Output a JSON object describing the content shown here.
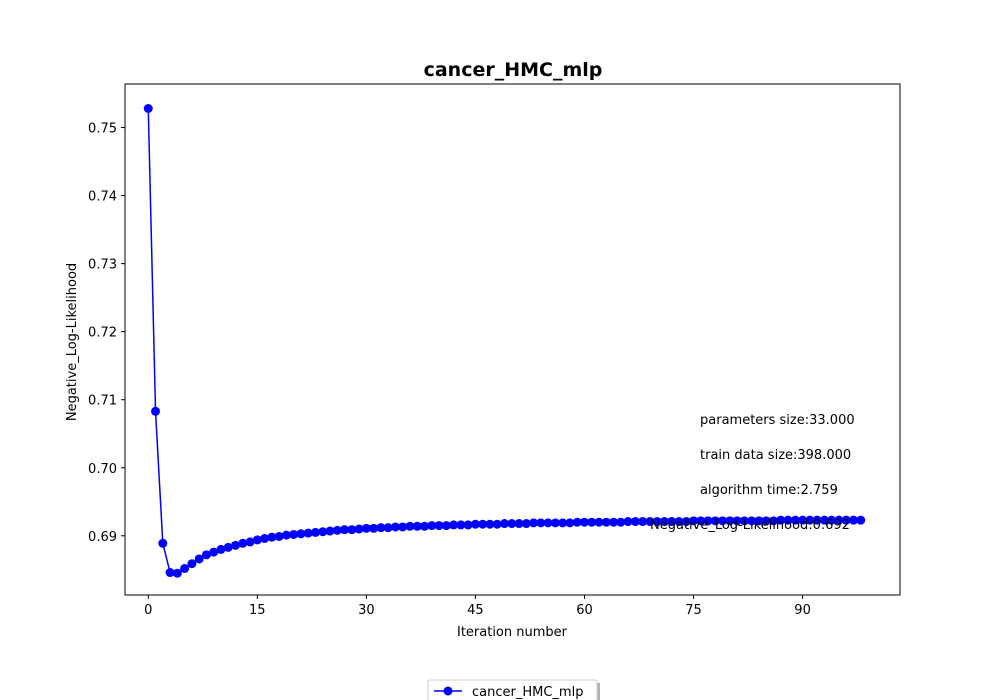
{
  "chart_data": {
    "type": "line",
    "title": "cancer_HMC_mlp",
    "xlabel": "Iteration number",
    "ylabel": "Negative_Log-Likelihood",
    "xlim": [
      -3.2,
      103.4
    ],
    "ylim": [
      0.6813,
      0.7564
    ],
    "xticks": [
      0,
      15,
      30,
      45,
      60,
      75,
      90
    ],
    "yticks": [
      0.69,
      0.7,
      0.71,
      0.72,
      0.73,
      0.74,
      0.75
    ],
    "ytick_labels": [
      "0.69",
      "0.70",
      "0.71",
      "0.72",
      "0.73",
      "0.74",
      "0.75"
    ],
    "grid": false,
    "legend_position": "bottom-center",
    "series": [
      {
        "name": "cancer_HMC_mlp",
        "color": "#0000ff",
        "marker": "circle",
        "x": [
          0,
          1,
          2,
          3,
          4,
          5,
          6,
          7,
          8,
          9,
          10,
          11,
          12,
          13,
          14,
          15,
          16,
          17,
          18,
          19,
          20,
          21,
          22,
          23,
          24,
          25,
          26,
          27,
          28,
          29,
          30,
          31,
          32,
          33,
          34,
          35,
          36,
          37,
          38,
          39,
          40,
          41,
          42,
          43,
          44,
          45,
          46,
          47,
          48,
          49,
          50,
          51,
          52,
          53,
          54,
          55,
          56,
          57,
          58,
          59,
          60,
          61,
          62,
          63,
          64,
          65,
          66,
          67,
          68,
          69,
          70,
          71,
          72,
          73,
          74,
          75,
          76,
          77,
          78,
          79,
          80,
          81,
          82,
          83,
          84,
          85,
          86,
          87,
          88,
          89,
          90,
          91,
          92,
          93,
          94,
          95,
          96,
          97,
          98
        ],
        "y": [
          0.7528,
          0.7083,
          0.6889,
          0.6846,
          0.6845,
          0.6852,
          0.6859,
          0.6866,
          0.6872,
          0.6876,
          0.688,
          0.6883,
          0.6886,
          0.6889,
          0.6891,
          0.6894,
          0.6896,
          0.6898,
          0.6899,
          0.6901,
          0.6902,
          0.6903,
          0.6904,
          0.6905,
          0.6906,
          0.6907,
          0.6908,
          0.6909,
          0.6909,
          0.691,
          0.6911,
          0.6911,
          0.6912,
          0.6912,
          0.6913,
          0.6913,
          0.6914,
          0.6914,
          0.6914,
          0.6915,
          0.6915,
          0.6915,
          0.6916,
          0.6916,
          0.6916,
          0.6917,
          0.6917,
          0.6917,
          0.6917,
          0.6918,
          0.6918,
          0.6918,
          0.6918,
          0.6919,
          0.6919,
          0.6919,
          0.6919,
          0.6919,
          0.6919,
          0.692,
          0.692,
          0.692,
          0.692,
          0.692,
          0.692,
          0.692,
          0.6921,
          0.6921,
          0.6921,
          0.6921,
          0.6921,
          0.6921,
          0.6921,
          0.6921,
          0.6921,
          0.6922,
          0.6922,
          0.6922,
          0.6922,
          0.6922,
          0.6922,
          0.6922,
          0.6922,
          0.6922,
          0.6922,
          0.6922,
          0.6922,
          0.6923,
          0.6923,
          0.6923,
          0.6923,
          0.6923,
          0.6923,
          0.6923,
          0.6923,
          0.6923,
          0.6923,
          0.6923,
          0.6923
        ]
      }
    ],
    "annotations": [
      "parameters size:33.000",
      "train data size:398.000",
      "algorithm time:2.759",
      "Negative_Log-Likelihood:0.692"
    ]
  }
}
